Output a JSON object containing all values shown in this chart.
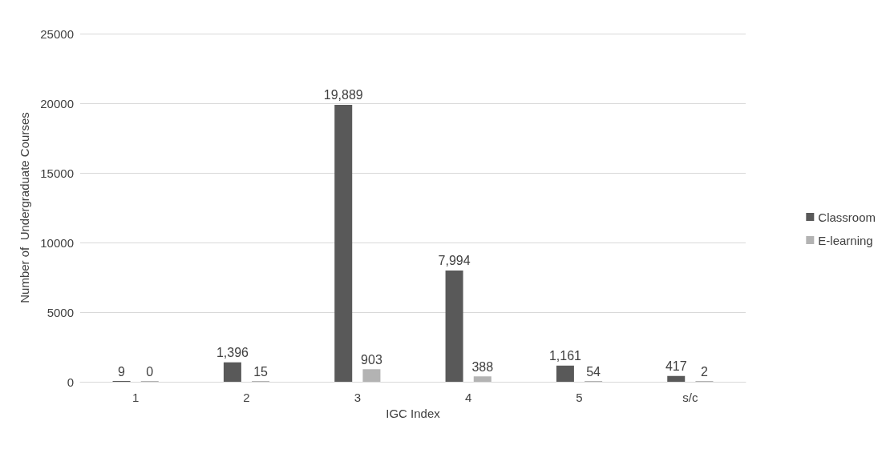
{
  "chart_data": {
    "type": "bar",
    "xlabel": "IGC Index",
    "ylabel": "Number of  Undergraduate Courses",
    "categories": [
      "1",
      "2",
      "3",
      "4",
      "5",
      "s/c"
    ],
    "series": [
      {
        "name": "Classroom",
        "color": "#595959",
        "values": [
          9,
          1396,
          19889,
          7994,
          1161,
          417
        ],
        "value_labels": [
          "9",
          "1,396",
          "19,889",
          "7,994",
          "1,161",
          "417"
        ]
      },
      {
        "name": "E-learning",
        "color": "#b3b3b3",
        "values": [
          0,
          15,
          903,
          388,
          54,
          2
        ],
        "value_labels": [
          "0",
          "15",
          "903",
          "388",
          "54",
          "2"
        ]
      }
    ],
    "ylim": [
      0,
      25000
    ],
    "yticks": [
      0,
      5000,
      10000,
      15000,
      20000,
      25000
    ],
    "grid": "y",
    "legend": "right"
  }
}
